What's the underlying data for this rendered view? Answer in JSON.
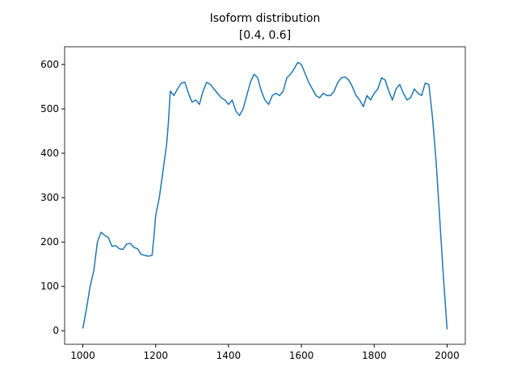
{
  "chart_data": {
    "type": "line",
    "title": "Isoform distribution",
    "subtitle": "[0.4, 0.6]",
    "x": [
      1000,
      1010,
      1020,
      1030,
      1040,
      1050,
      1060,
      1070,
      1080,
      1090,
      1100,
      1110,
      1120,
      1130,
      1140,
      1150,
      1160,
      1170,
      1180,
      1190,
      1195,
      1200,
      1210,
      1220,
      1230,
      1235,
      1240,
      1250,
      1260,
      1270,
      1280,
      1290,
      1300,
      1310,
      1320,
      1330,
      1340,
      1350,
      1360,
      1370,
      1380,
      1390,
      1400,
      1410,
      1420,
      1430,
      1440,
      1450,
      1460,
      1470,
      1480,
      1490,
      1500,
      1510,
      1520,
      1530,
      1540,
      1550,
      1560,
      1570,
      1580,
      1590,
      1600,
      1610,
      1620,
      1630,
      1640,
      1650,
      1660,
      1670,
      1680,
      1690,
      1700,
      1710,
      1720,
      1730,
      1740,
      1750,
      1760,
      1770,
      1780,
      1790,
      1800,
      1810,
      1820,
      1830,
      1840,
      1850,
      1860,
      1870,
      1880,
      1890,
      1900,
      1910,
      1920,
      1930,
      1940,
      1950,
      1960,
      1970,
      1980,
      1990,
      2000
    ],
    "series": [
      {
        "color": "#1f77b4",
        "values": [
          5,
          50,
          100,
          135,
          200,
          222,
          215,
          210,
          190,
          192,
          185,
          183,
          195,
          197,
          188,
          185,
          172,
          170,
          168,
          170,
          210,
          260,
          300,
          360,
          420,
          470,
          540,
          530,
          545,
          558,
          560,
          535,
          515,
          520,
          510,
          540,
          560,
          555,
          545,
          535,
          525,
          520,
          510,
          520,
          495,
          485,
          500,
          530,
          560,
          578,
          570,
          540,
          520,
          510,
          530,
          535,
          530,
          540,
          570,
          578,
          590,
          605,
          600,
          580,
          560,
          545,
          530,
          525,
          535,
          530,
          530,
          540,
          560,
          570,
          572,
          565,
          550,
          530,
          520,
          505,
          530,
          520,
          535,
          545,
          570,
          565,
          540,
          520,
          545,
          555,
          535,
          520,
          525,
          545,
          535,
          530,
          558,
          555,
          480,
          380,
          250,
          120,
          3
        ]
      }
    ],
    "xlim": [
      950,
      2050
    ],
    "ylim": [
      -30.5,
      640
    ],
    "xticks": [
      1000,
      1200,
      1400,
      1600,
      1800,
      2000
    ],
    "yticks": [
      0,
      100,
      200,
      300,
      400,
      500,
      600
    ]
  }
}
